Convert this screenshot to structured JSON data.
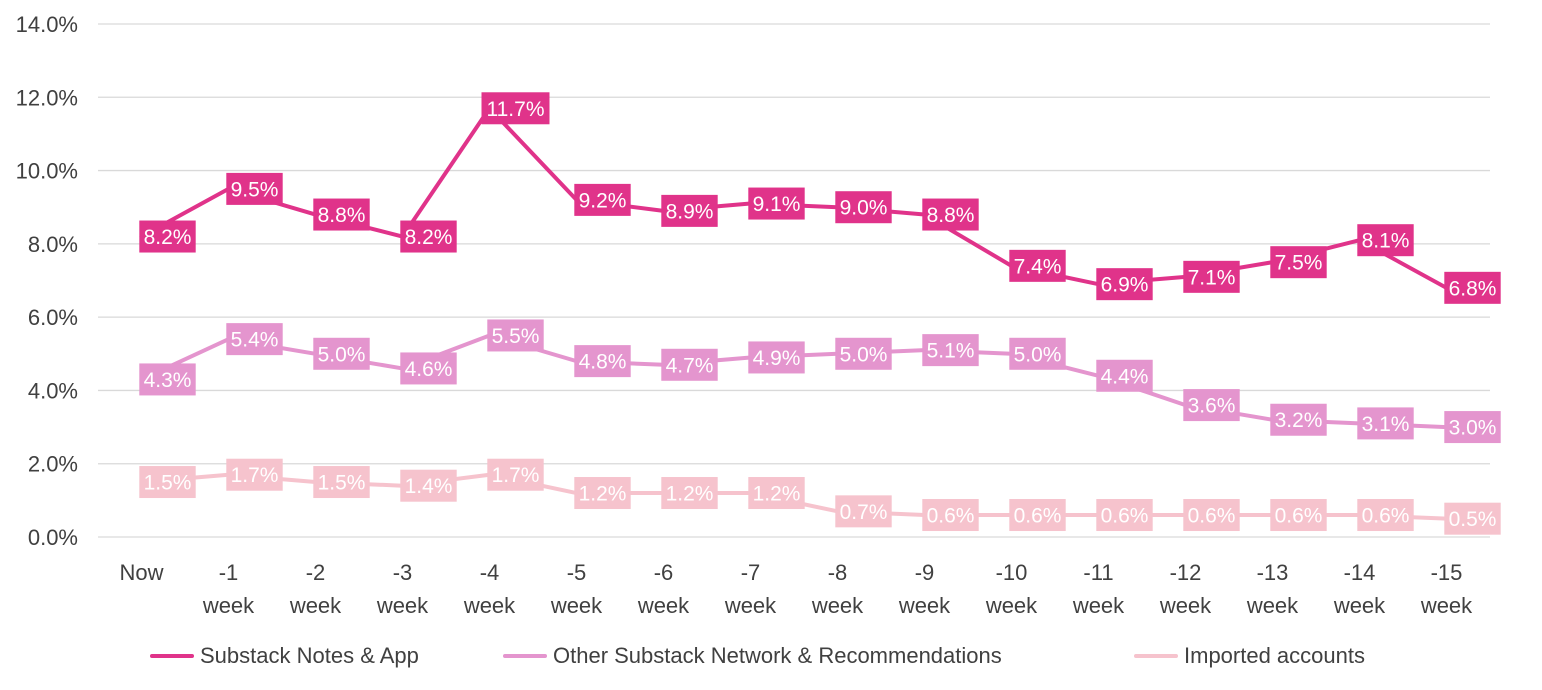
{
  "chart_data": {
    "type": "line",
    "categories": [
      [
        "Now"
      ],
      [
        "-1",
        "week"
      ],
      [
        "-2",
        "week"
      ],
      [
        "-3",
        "week"
      ],
      [
        "-4",
        "week"
      ],
      [
        "-5",
        "week"
      ],
      [
        "-6",
        "week"
      ],
      [
        "-7",
        "week"
      ],
      [
        "-8",
        "week"
      ],
      [
        "-9",
        "week"
      ],
      [
        "-10",
        "week"
      ],
      [
        "-11",
        "week"
      ],
      [
        "-12",
        "week"
      ],
      [
        "-13",
        "week"
      ],
      [
        "-14",
        "week"
      ],
      [
        "-15",
        "week"
      ]
    ],
    "y_ticks": [
      "0.0%",
      "2.0%",
      "4.0%",
      "6.0%",
      "8.0%",
      "10.0%",
      "12.0%",
      "14.0%"
    ],
    "ylim": [
      0,
      14
    ],
    "y_unit": "%",
    "grid": true,
    "legend_position": "bottom",
    "series": [
      {
        "name": "Substack Notes & App",
        "color": "#E0338A",
        "values": [
          8.2,
          9.5,
          8.8,
          8.2,
          11.7,
          9.2,
          8.9,
          9.1,
          9.0,
          8.8,
          7.4,
          6.9,
          7.1,
          7.5,
          8.1,
          6.8
        ],
        "labels": [
          "8.2%",
          "9.5%",
          "8.8%",
          "8.2%",
          "11.7%",
          "9.2%",
          "8.9%",
          "9.1%",
          "9.0%",
          "8.8%",
          "7.4%",
          "6.9%",
          "7.1%",
          "7.5%",
          "8.1%",
          "6.8%"
        ]
      },
      {
        "name": "Other Substack Network & Recommendations",
        "color": "#E495CE",
        "values": [
          4.3,
          5.4,
          5.0,
          4.6,
          5.5,
          4.8,
          4.7,
          4.9,
          5.0,
          5.1,
          5.0,
          4.4,
          3.6,
          3.2,
          3.1,
          3.0
        ],
        "labels": [
          "4.3%",
          "5.4%",
          "5.0%",
          "4.6%",
          "5.5%",
          "4.8%",
          "4.7%",
          "4.9%",
          "5.0%",
          "5.1%",
          "5.0%",
          "4.4%",
          "3.6%",
          "3.2%",
          "3.1%",
          "3.0%"
        ]
      },
      {
        "name": "Imported accounts",
        "color": "#F6C3CD",
        "values": [
          1.5,
          1.7,
          1.5,
          1.4,
          1.7,
          1.2,
          1.2,
          1.2,
          0.7,
          0.6,
          0.6,
          0.6,
          0.6,
          0.6,
          0.6,
          0.5
        ],
        "labels": [
          "1.5%",
          "1.7%",
          "1.5%",
          "1.4%",
          "1.7%",
          "1.2%",
          "1.2%",
          "1.2%",
          "0.7%",
          "0.6%",
          "0.6%",
          "0.6%",
          "0.6%",
          "0.6%",
          "0.6%",
          "0.5%"
        ]
      }
    ]
  },
  "legend": {
    "items": [
      {
        "label": "Substack Notes & App",
        "color": "#E0338A"
      },
      {
        "label": "Other Substack Network & Recommendations",
        "color": "#E495CE"
      },
      {
        "label": "Imported accounts",
        "color": "#F6C3CD"
      }
    ]
  },
  "style": {
    "grid_color": "#D9D9D9",
    "text_color": "#404040"
  }
}
